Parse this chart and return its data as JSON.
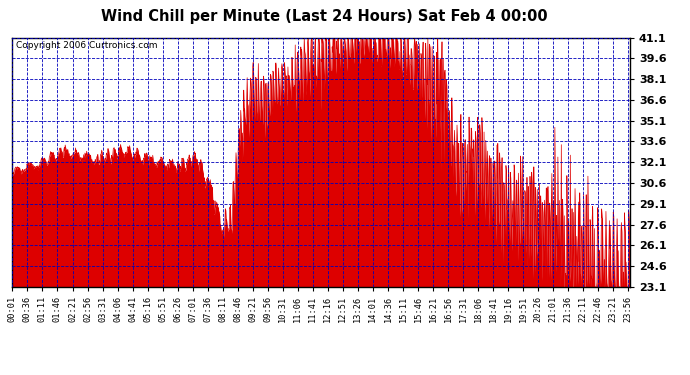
{
  "title": "Wind Chill per Minute (Last 24 Hours) Sat Feb 4 00:00",
  "copyright": "Copyright 2006 Curtronics.com",
  "ylabel_values": [
    23.1,
    24.6,
    26.1,
    27.6,
    29.1,
    30.6,
    32.1,
    33.6,
    35.1,
    36.6,
    38.1,
    39.6,
    41.1
  ],
  "ymin": 23.1,
  "ymax": 41.1,
  "bg_color": "#ffffff",
  "plot_bg_color": "#ffffff",
  "line_color": "#dd0000",
  "fill_color": "#dd0000",
  "grid_color": "#0000bb",
  "title_color": "#000000",
  "border_color": "#000000",
  "total_minutes": 1440,
  "x_tick_labels": [
    "00:01",
    "00:36",
    "01:11",
    "01:46",
    "02:21",
    "02:56",
    "03:31",
    "04:06",
    "04:41",
    "05:16",
    "05:51",
    "06:26",
    "07:01",
    "07:36",
    "08:11",
    "08:46",
    "09:21",
    "09:56",
    "10:31",
    "11:06",
    "11:41",
    "12:16",
    "12:51",
    "13:26",
    "14:01",
    "14:36",
    "15:11",
    "15:46",
    "16:21",
    "16:56",
    "17:31",
    "18:06",
    "18:41",
    "19:16",
    "19:51",
    "20:26",
    "21:01",
    "21:36",
    "22:11",
    "22:46",
    "23:21",
    "23:56"
  ],
  "x_tick_positions": [
    0,
    35,
    70,
    105,
    140,
    175,
    210,
    245,
    280,
    315,
    350,
    385,
    420,
    455,
    490,
    525,
    560,
    595,
    630,
    665,
    700,
    735,
    770,
    805,
    840,
    875,
    910,
    945,
    980,
    1015,
    1050,
    1085,
    1120,
    1155,
    1190,
    1225,
    1260,
    1295,
    1330,
    1365,
    1400,
    1435
  ],
  "segments": [
    {
      "start": 0,
      "end": 60,
      "v_start": 31.3,
      "v_end": 32.0,
      "noise": 0.25,
      "freq": 2
    },
    {
      "start": 60,
      "end": 120,
      "v_start": 32.0,
      "v_end": 32.8,
      "noise": 0.3,
      "freq": 3
    },
    {
      "start": 120,
      "end": 200,
      "v_start": 32.8,
      "v_end": 32.3,
      "noise": 0.3,
      "freq": 3
    },
    {
      "start": 200,
      "end": 260,
      "v_start": 32.3,
      "v_end": 33.0,
      "noise": 0.4,
      "freq": 4
    },
    {
      "start": 260,
      "end": 320,
      "v_start": 33.0,
      "v_end": 32.2,
      "noise": 0.35,
      "freq": 3
    },
    {
      "start": 320,
      "end": 390,
      "v_start": 32.2,
      "v_end": 31.8,
      "noise": 0.3,
      "freq": 3
    },
    {
      "start": 390,
      "end": 430,
      "v_start": 31.8,
      "v_end": 32.5,
      "noise": 0.4,
      "freq": 3
    },
    {
      "start": 430,
      "end": 460,
      "v_start": 32.5,
      "v_end": 30.2,
      "noise": 0.5,
      "freq": 2
    },
    {
      "start": 460,
      "end": 490,
      "v_start": 30.2,
      "v_end": 27.5,
      "noise": 0.6,
      "freq": 2
    },
    {
      "start": 490,
      "end": 510,
      "v_start": 27.5,
      "v_end": 28.0,
      "noise": 0.8,
      "freq": 2
    },
    {
      "start": 510,
      "end": 530,
      "v_start": 28.0,
      "v_end": 33.5,
      "noise": 1.2,
      "freq": 3
    },
    {
      "start": 530,
      "end": 560,
      "v_start": 33.5,
      "v_end": 37.3,
      "noise": 1.5,
      "freq": 4
    },
    {
      "start": 560,
      "end": 590,
      "v_start": 37.3,
      "v_end": 36.5,
      "noise": 1.8,
      "freq": 5
    },
    {
      "start": 590,
      "end": 620,
      "v_start": 36.5,
      "v_end": 37.5,
      "noise": 1.5,
      "freq": 5
    },
    {
      "start": 620,
      "end": 660,
      "v_start": 37.5,
      "v_end": 38.5,
      "noise": 1.5,
      "freq": 5
    },
    {
      "start": 660,
      "end": 700,
      "v_start": 38.5,
      "v_end": 39.3,
      "noise": 1.8,
      "freq": 5
    },
    {
      "start": 700,
      "end": 750,
      "v_start": 39.3,
      "v_end": 40.2,
      "noise": 1.8,
      "freq": 6
    },
    {
      "start": 750,
      "end": 800,
      "v_start": 40.2,
      "v_end": 40.8,
      "noise": 1.5,
      "freq": 6
    },
    {
      "start": 800,
      "end": 850,
      "v_start": 40.8,
      "v_end": 41.0,
      "noise": 1.2,
      "freq": 5
    },
    {
      "start": 850,
      "end": 900,
      "v_start": 41.0,
      "v_end": 40.5,
      "noise": 1.5,
      "freq": 5
    },
    {
      "start": 900,
      "end": 940,
      "v_start": 40.5,
      "v_end": 39.2,
      "noise": 1.8,
      "freq": 5
    },
    {
      "start": 940,
      "end": 960,
      "v_start": 39.2,
      "v_end": 38.0,
      "noise": 2.0,
      "freq": 5
    },
    {
      "start": 960,
      "end": 990,
      "v_start": 38.0,
      "v_end": 36.5,
      "noise": 2.5,
      "freq": 6
    },
    {
      "start": 990,
      "end": 1010,
      "v_start": 36.5,
      "v_end": 36.5,
      "noise": 3.0,
      "freq": 6
    },
    {
      "start": 1010,
      "end": 1040,
      "v_start": 36.5,
      "v_end": 31.2,
      "noise": 2.0,
      "freq": 5
    },
    {
      "start": 1040,
      "end": 1070,
      "v_start": 31.2,
      "v_end": 32.5,
      "noise": 2.5,
      "freq": 6
    },
    {
      "start": 1070,
      "end": 1100,
      "v_start": 32.5,
      "v_end": 31.0,
      "noise": 2.5,
      "freq": 6
    },
    {
      "start": 1100,
      "end": 1130,
      "v_start": 31.0,
      "v_end": 30.2,
      "noise": 2.8,
      "freq": 7
    },
    {
      "start": 1130,
      "end": 1165,
      "v_start": 30.2,
      "v_end": 29.0,
      "noise": 2.8,
      "freq": 7
    },
    {
      "start": 1165,
      "end": 1200,
      "v_start": 29.0,
      "v_end": 28.5,
      "noise": 3.0,
      "freq": 7
    },
    {
      "start": 1200,
      "end": 1230,
      "v_start": 28.5,
      "v_end": 27.5,
      "noise": 3.0,
      "freq": 7
    },
    {
      "start": 1230,
      "end": 1260,
      "v_start": 27.5,
      "v_end": 26.5,
      "noise": 3.2,
      "freq": 7
    },
    {
      "start": 1260,
      "end": 1290,
      "v_start": 26.5,
      "v_end": 26.0,
      "noise": 3.5,
      "freq": 8
    },
    {
      "start": 1290,
      "end": 1320,
      "v_start": 26.0,
      "v_end": 25.5,
      "noise": 3.5,
      "freq": 8
    },
    {
      "start": 1320,
      "end": 1360,
      "v_start": 25.5,
      "v_end": 25.0,
      "noise": 3.8,
      "freq": 8
    },
    {
      "start": 1360,
      "end": 1440,
      "v_start": 25.0,
      "v_end": 23.5,
      "noise": 3.5,
      "freq": 9
    }
  ]
}
